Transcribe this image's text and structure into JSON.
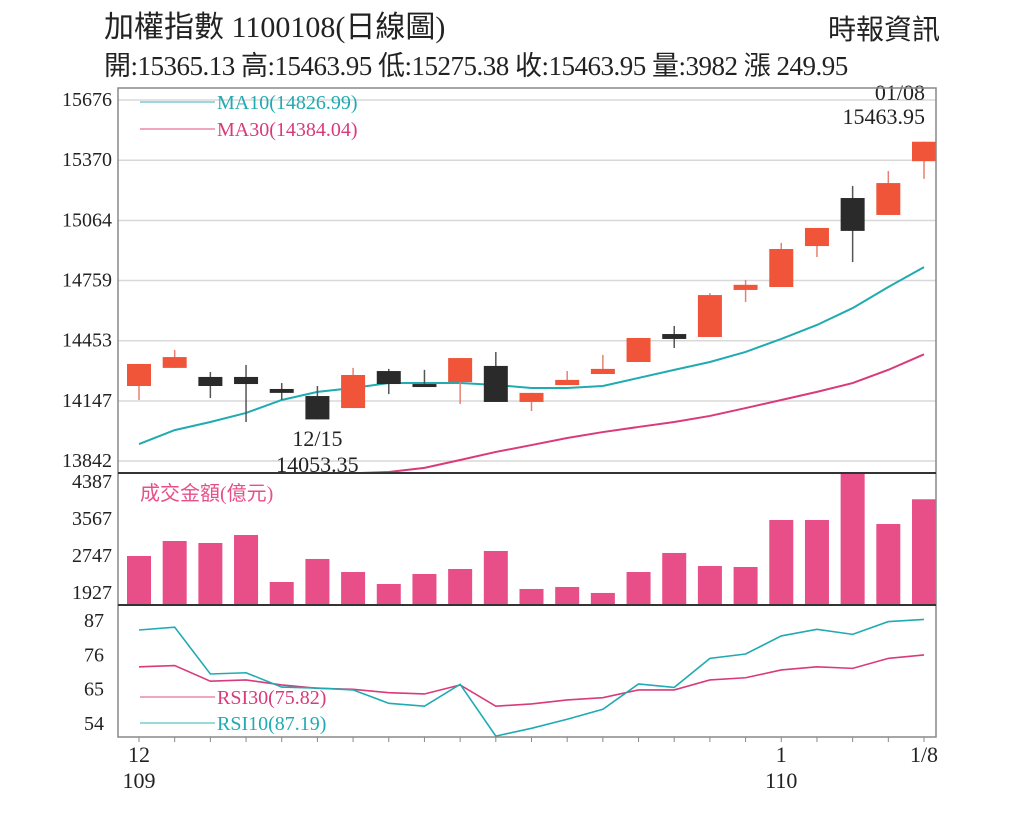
{
  "header": {
    "title": "加權指數 1100108(日線圖)",
    "source": "時報資訊",
    "ohlc": "開:15365.13 高:15463.95 低:15275.38 收:15463.95 量:3982 漲 249.95"
  },
  "colors": {
    "up": "#f0553a",
    "down": "#2a2a2a",
    "ma10": "#20aab2",
    "ma30": "#d93a7a",
    "volume": "#e84f88",
    "rsi30": "#d93a7a",
    "rsi10": "#20aab2",
    "grid": "#d8d8d8"
  },
  "chart_data": [
    {
      "type": "candlestick",
      "ylim": [
        13842,
        15676
      ],
      "yticks": [
        "15676",
        "15370",
        "15064",
        "14759",
        "14453",
        "14147",
        "13842"
      ],
      "grid": true,
      "legend": "top-left",
      "ohlc": [
        [
          14223,
          14335,
          14335,
          14152
        ],
        [
          14315,
          14370,
          14406,
          14315
        ],
        [
          14269,
          14223,
          14294,
          14162
        ],
        [
          14269,
          14233,
          14330,
          14040
        ],
        [
          14208,
          14188,
          14238,
          14152
        ],
        [
          14172,
          14053.35,
          14223,
          14053.35
        ],
        [
          14111,
          14279,
          14315,
          14111
        ],
        [
          14299,
          14233,
          14310,
          14182
        ],
        [
          14233,
          14223,
          14305,
          14223
        ],
        [
          14243,
          14365,
          14365,
          14132
        ],
        [
          14325,
          14142,
          14396,
          14142
        ],
        [
          14142,
          14188,
          14188,
          14096
        ],
        [
          14228,
          14254,
          14299,
          14228
        ],
        [
          14284,
          14310,
          14381,
          14284
        ],
        [
          14345,
          14467,
          14467,
          14345
        ],
        [
          14487,
          14462,
          14528,
          14416
        ],
        [
          14472,
          14685,
          14695,
          14472
        ],
        [
          14711,
          14737,
          14762,
          14650
        ],
        [
          14726,
          14919,
          14950,
          14726
        ],
        [
          14934,
          15026,
          15026,
          14878
        ],
        [
          15178,
          15011,
          15239,
          14853
        ],
        [
          15092,
          15254,
          15315,
          15092
        ],
        [
          15365.13,
          15463.95,
          15463.95,
          15275.38
        ]
      ],
      "series": [
        {
          "name": "MA10(14826.99)",
          "values": [
            13928,
            13999,
            14040,
            14086,
            14152,
            14193,
            14213,
            14238,
            14238,
            14238,
            14228,
            14213,
            14213,
            14223,
            14264,
            14305,
            14345,
            14396,
            14462,
            14533,
            14619,
            14726,
            14826.99
          ]
        },
        {
          "name": "MA30(14384.04)",
          "values": [
            13780,
            13780,
            13780,
            13780,
            13780,
            13780,
            13780,
            13786,
            13807,
            13847,
            13888,
            13923,
            13959,
            13989,
            14015,
            14040,
            14071,
            14111,
            14152,
            14193,
            14238,
            14305,
            14384.04
          ]
        }
      ],
      "annotations": [
        {
          "index": 5,
          "lines": [
            "12/15",
            "14053.35"
          ]
        },
        {
          "index": 22,
          "lines": [
            "01/08",
            "15463.95"
          ]
        }
      ]
    },
    {
      "type": "bar",
      "title": "成交金額(億元)",
      "ylim": [
        1662,
        4587
      ],
      "yticks": [
        "4387",
        "3567",
        "2747",
        "1927"
      ],
      "values": [
        2725,
        3057,
        3013,
        3190,
        2149,
        2659,
        2370,
        2105,
        2326,
        2437,
        2836,
        1994,
        2038,
        1906,
        2370,
        2792,
        2503,
        2481,
        3523,
        3523,
        4600,
        3434,
        3982
      ]
    },
    {
      "type": "line",
      "ylim": [
        50,
        91
      ],
      "yticks": [
        "87",
        "76",
        "65",
        "54"
      ],
      "series": [
        {
          "name": "RSI30(75.82)",
          "values": [
            72.0,
            72.4,
            67.4,
            67.8,
            66.2,
            65.1,
            64.8,
            63.7,
            63.3,
            66.2,
            59.4,
            60.1,
            61.4,
            62.1,
            64.6,
            64.6,
            67.8,
            68.5,
            71.0,
            72.0,
            71.5,
            74.7,
            75.82
          ]
        },
        {
          "name": "RSI10(87.19)",
          "values": [
            83.8,
            84.7,
            69.7,
            70.1,
            65.5,
            65.2,
            64.6,
            60.3,
            59.4,
            66.4,
            49.8,
            52.3,
            55.2,
            58.4,
            66.5,
            65.4,
            74.7,
            76.1,
            81.9,
            84.0,
            82.4,
            86.5,
            87.19
          ]
        }
      ],
      "xticks": [
        {
          "index": 0,
          "lines": [
            "12",
            "109"
          ]
        },
        {
          "index": 18,
          "lines": [
            "1",
            "110"
          ]
        },
        {
          "index": 22,
          "lines": [
            "1/8",
            ""
          ]
        }
      ]
    }
  ]
}
